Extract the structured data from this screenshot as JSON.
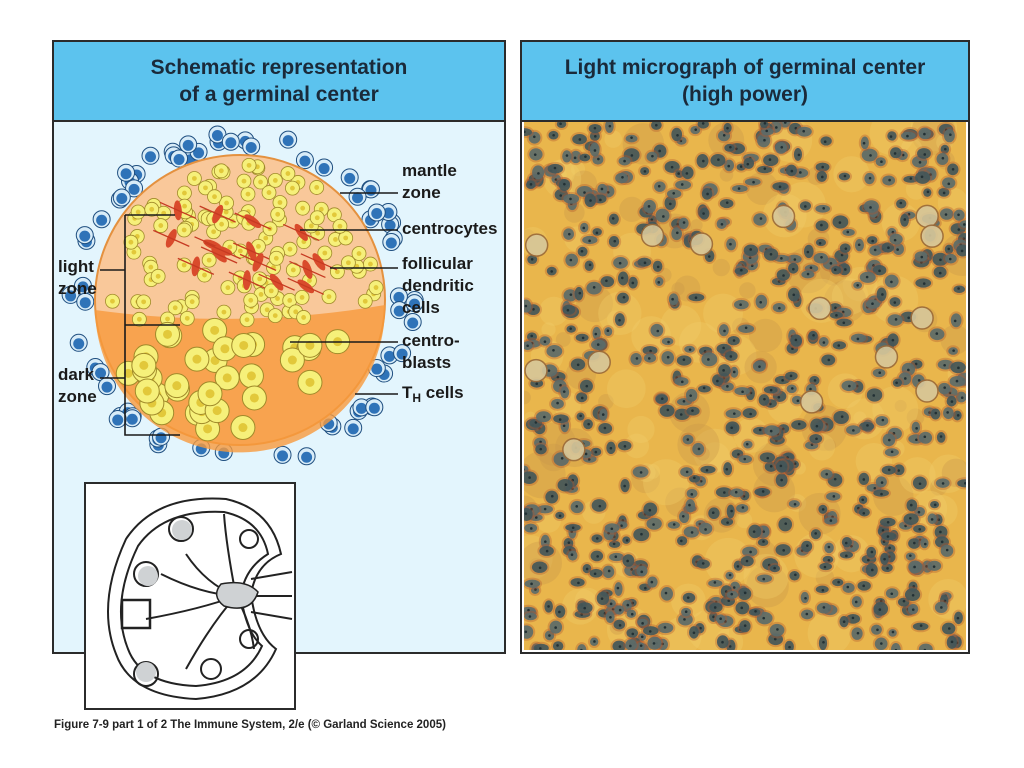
{
  "left_panel": {
    "title_line1": "Schematic representation",
    "title_line2": "of a germinal center",
    "labels": {
      "mantle_zone_1": "mantle",
      "mantle_zone_2": "zone",
      "centrocytes": "centrocytes",
      "follicular_1": "follicular",
      "follicular_2": "dendritic",
      "follicular_3": "cells",
      "centroblasts_1": "centro-",
      "centroblasts_2": "blasts",
      "th_main": "T",
      "th_sub": "H",
      "th_rest": " cells",
      "light_zone_1": "light",
      "light_zone_2": "zone",
      "dark_zone_1": "dark",
      "dark_zone_2": "zone"
    }
  },
  "right_panel": {
    "title_line1": "Light micrograph of germinal center",
    "title_line2": "(high power)"
  },
  "caption": "Figure 7-9 part 1 of 2  The Immune System, 2/e (© Garland Science 2005)",
  "colors": {
    "header": "#5cc3ee",
    "panel_bg": "#e3f5fd",
    "follicle_peach": "#f9c89a",
    "follicle_orange": "#f79a3c",
    "cell_yellow": "#f6f07a",
    "mantle_blue": "#2f73b8",
    "micro_bg": "#e9b64c"
  }
}
